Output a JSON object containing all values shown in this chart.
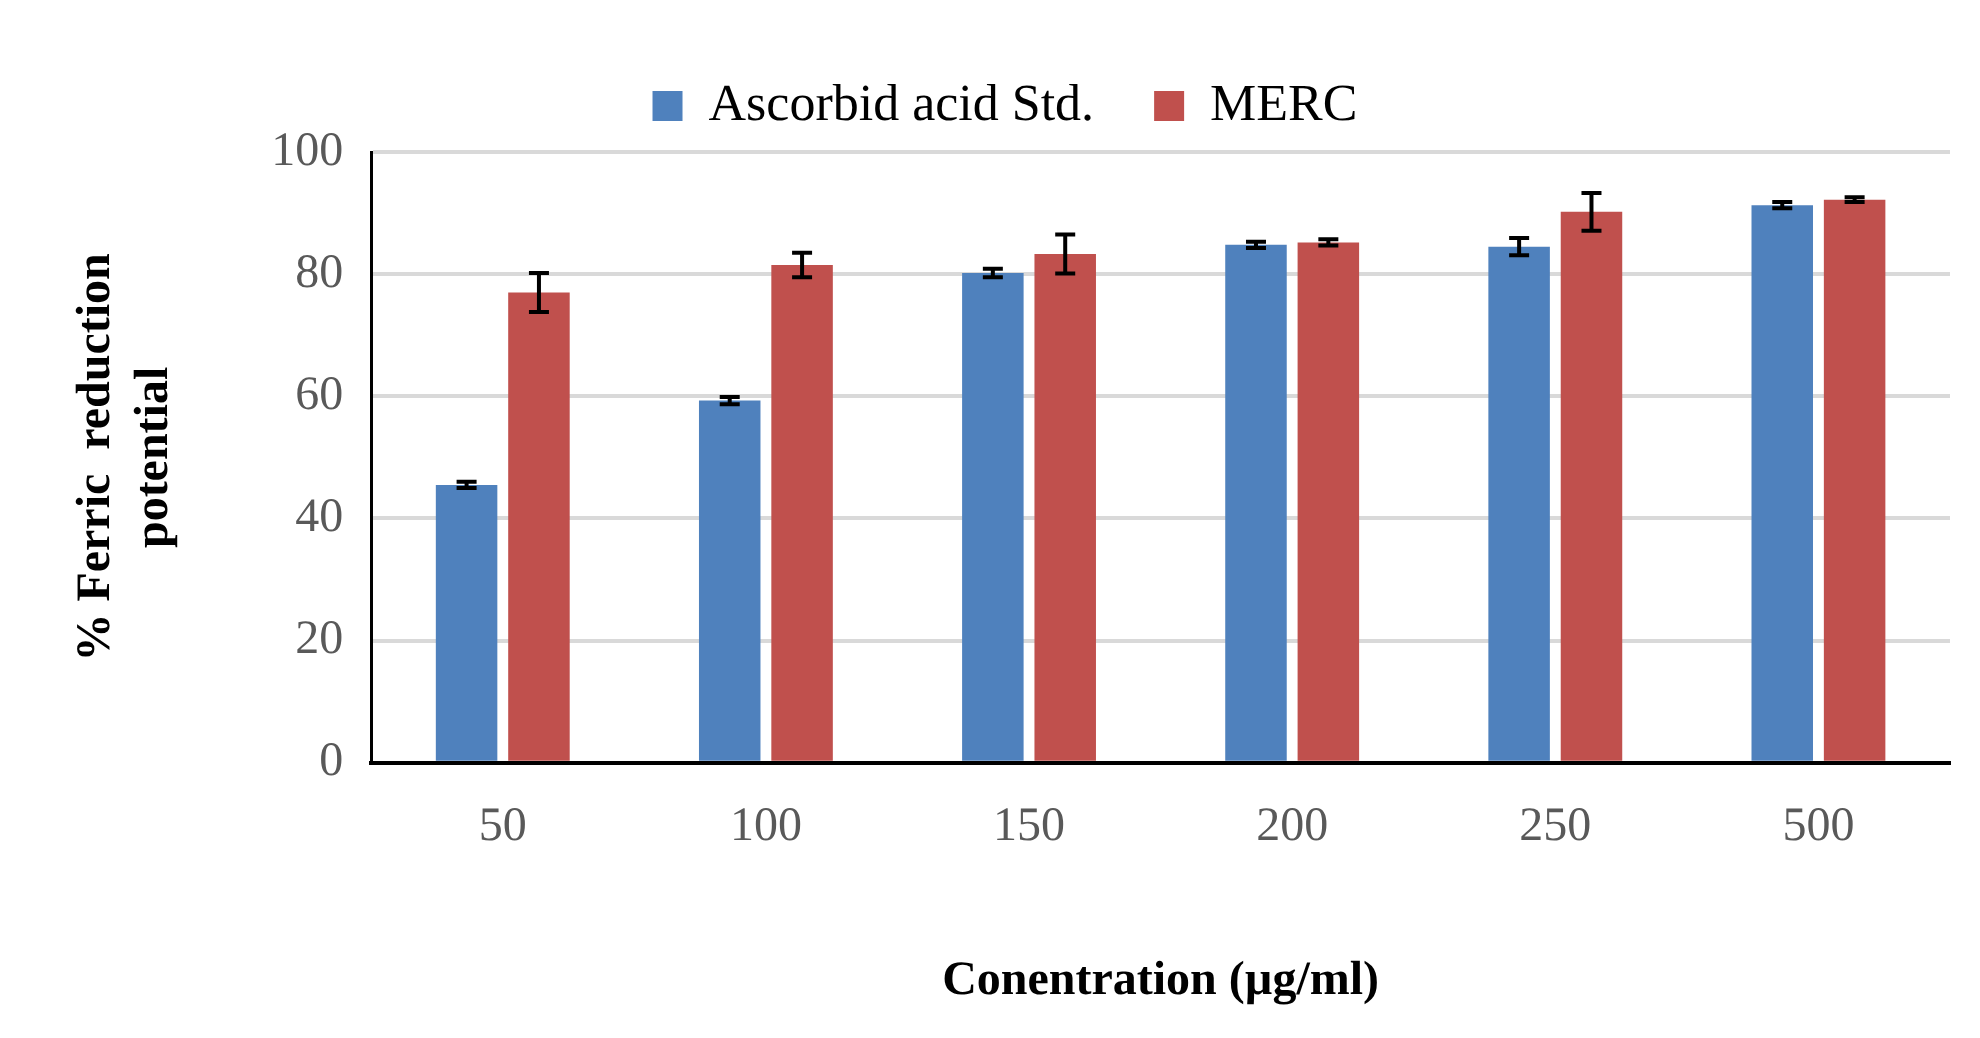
{
  "chart_data": {
    "type": "bar",
    "xlabel": "Conentration (µg/ml)",
    "ylabel": "% Ferric  reduction potential",
    "categories": [
      "50",
      "100",
      "150",
      "200",
      "250",
      "500"
    ],
    "series": [
      {
        "name": "Ascorbid acid Std.",
        "color": "#4f81bd",
        "values": [
          45.5,
          59.3,
          80.2,
          84.8,
          84.5,
          91.3
        ],
        "errors": [
          0.5,
          0.6,
          0.7,
          0.5,
          1.4,
          0.5
        ]
      },
      {
        "name": "MERC",
        "color": "#c0504d",
        "values": [
          77.0,
          81.5,
          83.3,
          85.2,
          90.2,
          92.2
        ],
        "errors": [
          3.2,
          2.0,
          3.2,
          0.5,
          3.1,
          0.4
        ]
      }
    ],
    "ylim": [
      0,
      100
    ],
    "yticks": [
      0,
      20,
      40,
      60,
      80,
      100
    ],
    "grid": "y",
    "legend": "top"
  }
}
